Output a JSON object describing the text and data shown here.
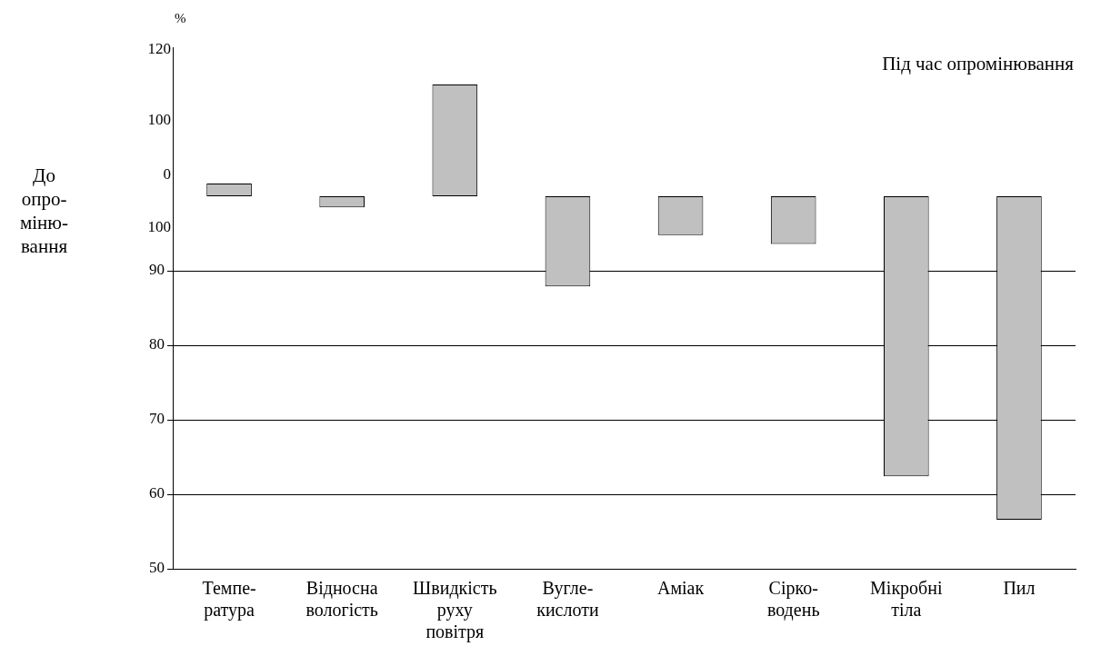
{
  "chart_data": {
    "type": "bar",
    "title": "%",
    "ylabel": "До\nопро-\nміню-\nвання",
    "annotations": [
      "Під час опромінювання",
      "120",
      "100",
      "0",
      "100"
    ],
    "categories": [
      "Темпе-\nратура",
      "Відносна\nвологість",
      "Швидкість\nруху\nповітря",
      "Вугле-\nкислоти",
      "Аміак",
      "Сірко-\nводень",
      "Мікробні\nтіла",
      "Пил"
    ],
    "base": [
      100,
      100,
      100,
      100,
      100,
      100,
      100,
      100
    ],
    "values": [
      1.7,
      -1.5,
      15,
      -12.1,
      -5.2,
      -6.4,
      -37.6,
      -43.4
    ],
    "color": "#c0c0c0",
    "ylim": [
      50,
      120
    ],
    "yticks": [
      50,
      60,
      70,
      80,
      90
    ],
    "grid": "y",
    "legend": false
  }
}
